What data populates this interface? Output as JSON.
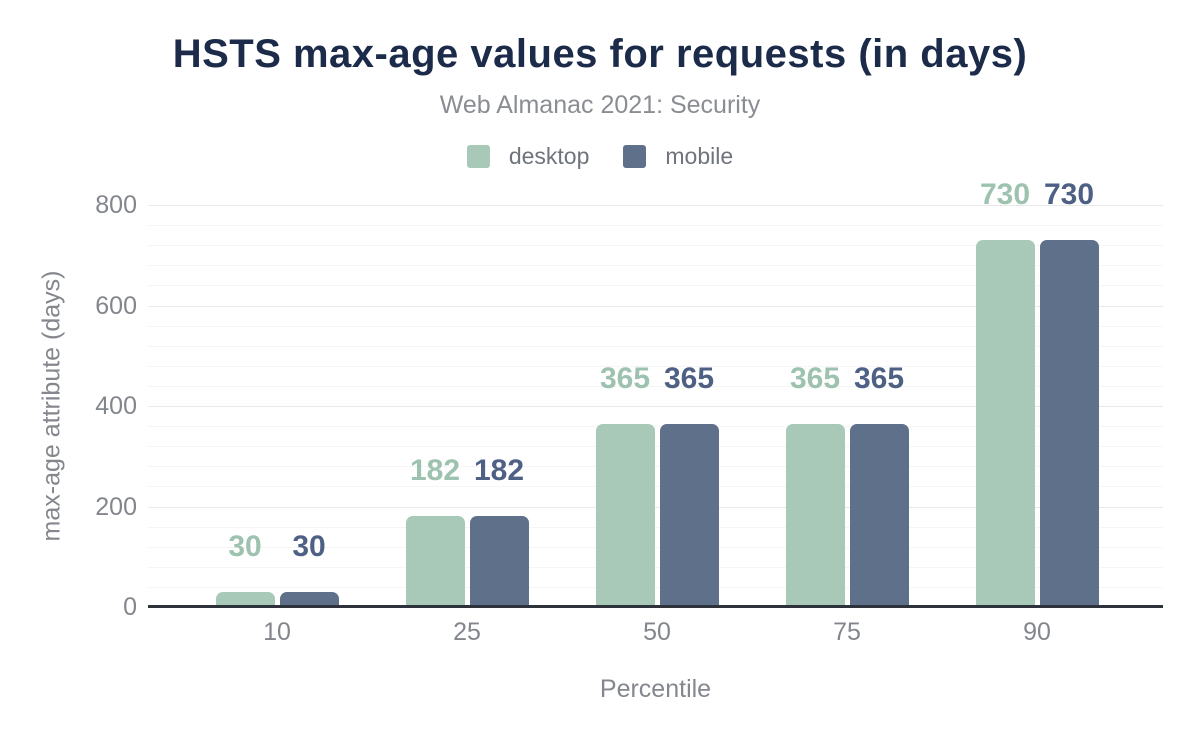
{
  "colors": {
    "title_text": "#1b2b49",
    "subtitle_text": "#8a8d92",
    "axis_line": "#2e323b",
    "grid_major": "#e9e9e9",
    "grid_minor": "#f5f5f5",
    "tick_text": "#83878d",
    "legend_text": "#6f747c",
    "background": "#ffffff"
  },
  "chart_data": {
    "type": "bar",
    "title": "HSTS max-age values for requests (in days)",
    "subtitle": "Web Almanac 2021: Security",
    "categories": [
      "10",
      "25",
      "50",
      "75",
      "90"
    ],
    "series": [
      {
        "name": "desktop",
        "color": "#a8c9b8",
        "label_color": "#9dc2af",
        "values": [
          30,
          182,
          365,
          365,
          730
        ]
      },
      {
        "name": "mobile",
        "color": "#5f708a",
        "label_color": "#4e6185",
        "values": [
          30,
          182,
          365,
          365,
          730
        ]
      }
    ],
    "xlabel": "Percentile",
    "ylabel": "max-age attribute (days)",
    "ylim": [
      0,
      800
    ],
    "ytick_interval": 200,
    "y_ticks": [
      "0",
      "200",
      "400",
      "600",
      "800"
    ],
    "minor_gridline_interval": 40,
    "grid": true,
    "legend_position": "top",
    "value_labels": true
  }
}
